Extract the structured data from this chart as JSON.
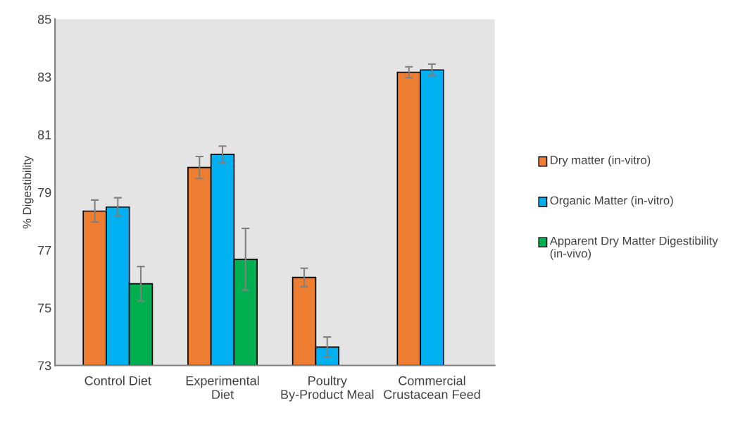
{
  "chart_data": {
    "type": "bar",
    "ylabel": "% Digestibility",
    "categories": [
      "Control Diet",
      "Experimental Diet",
      "Poultry By-Product Meal",
      "Commercial Crustacean Feed"
    ],
    "series": [
      {
        "name": "Dry matter (in-vitro)",
        "color": "#ed7d31",
        "values": [
          78.35,
          79.86,
          76.05,
          83.16
        ],
        "errors": [
          0.38,
          0.38,
          0.32,
          0.19
        ]
      },
      {
        "name": "Organic Matter (in-vitro)",
        "color": "#00b0f0",
        "values": [
          78.49,
          80.31,
          73.64,
          83.24
        ],
        "errors": [
          0.32,
          0.29,
          0.35,
          0.2
        ]
      },
      {
        "name": "Apparent Dry Matter Digestibility (in-vivo)",
        "color": "#00b050",
        "values": [
          75.83,
          76.68,
          null,
          null
        ],
        "errors": [
          0.6,
          1.07,
          null,
          null
        ]
      }
    ],
    "ylim": [
      73,
      85
    ],
    "yticks": [
      73,
      75,
      77,
      79,
      81,
      83,
      85
    ],
    "grid": false,
    "legend": "right"
  }
}
